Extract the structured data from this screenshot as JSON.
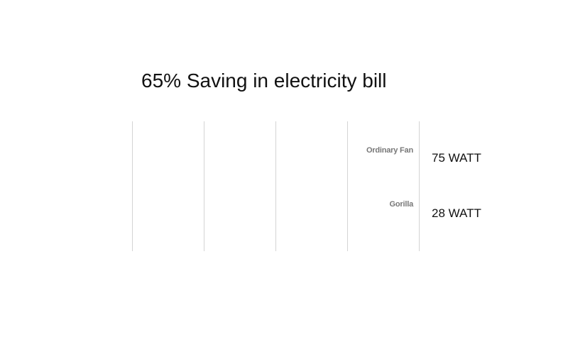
{
  "chart_data": {
    "type": "bar",
    "orientation": "horizontal",
    "title": "65% Saving in electricity bill",
    "categories": [
      "Ordinary Fan",
      "Gorilla"
    ],
    "values": [
      75,
      28
    ],
    "value_labels": [
      "75 WATT",
      "28 WATT"
    ],
    "unit": "WATT",
    "grid": true,
    "legend": "none",
    "colors": {
      "title": "#111111",
      "category_label": "#777777",
      "value_label": "#111111",
      "gridline": "#d4d4d4"
    }
  }
}
